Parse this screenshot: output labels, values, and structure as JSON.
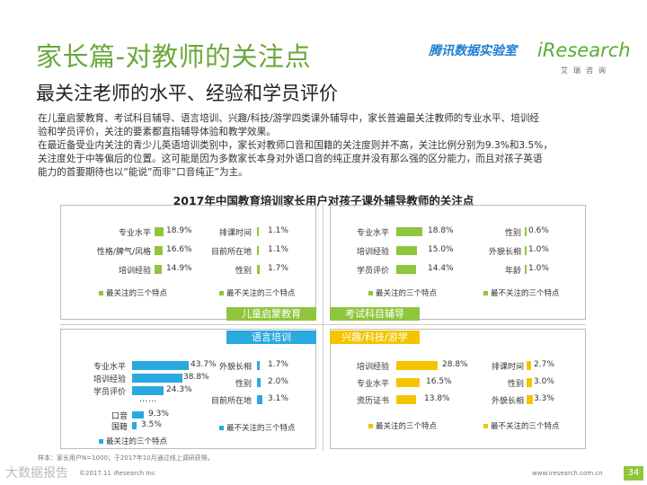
{
  "header": {
    "title": "家长篇-对教师的关注点",
    "subtitle": "最关注老师的水平、经验和学员评价"
  },
  "logo": {
    "cn": "腾讯数据实验室",
    "iresearch": "iResearch",
    "iresearch_sub": "艾瑞咨询"
  },
  "paragraphs": [
    "在儿童启蒙教育、考试科目辅导、语言培训、兴趣/科技/游学四类课外辅导中，家长普遍最关注教师的专业水平、培训经",
    "验和学员评价，关注的要素都直指辅导体验和教学效果。",
    "在最近备受业内关注的青少儿英语培训类别中，家长对教师口音和国籍的关注度则并不高，关注比例分别为9.3%和3.5%，",
    "关注度处于中等偏后的位置。这可能是因为多数家长本身对外语口音的纯正度并没有那么强的区分能力，而且对孩子英语",
    "能力的首要期待也以“能说”而非“口音纯正”为主。"
  ],
  "chart_data": {
    "type": "bar",
    "title": "2017年中国教育培训家长用户对孩子课外辅导教师的关注点",
    "legend": {
      "most": "最关注的三个特点",
      "least": "最不关注的三个特点"
    },
    "ellipsis": "……",
    "colors": {
      "green": "#8fc63d",
      "blue": "#29a9e0",
      "yellow": "#f5c400"
    },
    "panels": [
      {
        "name": "儿童启蒙教育",
        "most": [
          {
            "label": "专业水平",
            "value": 18.9,
            "text": "18.9%"
          },
          {
            "label": "性格/脾气/风格",
            "value": 16.6,
            "text": "16.6%"
          },
          {
            "label": "培训经验",
            "value": 14.9,
            "text": "14.9%"
          }
        ],
        "least": [
          {
            "label": "排课时间",
            "value": 1.1,
            "text": "1.1%"
          },
          {
            "label": "目前所在地",
            "value": 1.1,
            "text": "1.1%"
          },
          {
            "label": "性别",
            "value": 1.7,
            "text": "1.7%"
          }
        ]
      },
      {
        "name": "考试科目辅导",
        "most": [
          {
            "label": "专业水平",
            "value": 18.8,
            "text": "18.8%"
          },
          {
            "label": "培训经验",
            "value": 15.0,
            "text": "15.0%"
          },
          {
            "label": "学员评价",
            "value": 14.4,
            "text": "14.4%"
          }
        ],
        "least": [
          {
            "label": "性别",
            "value": 0.6,
            "text": "0.6%"
          },
          {
            "label": "外貌长相",
            "value": 1.0,
            "text": "1.0%"
          },
          {
            "label": "年龄",
            "value": 1.0,
            "text": "1.0%"
          }
        ]
      },
      {
        "name": "语言培训",
        "most": [
          {
            "label": "专业水平",
            "value": 43.7,
            "text": "43.7%"
          },
          {
            "label": "培训经验",
            "value": 38.8,
            "text": "38.8%"
          },
          {
            "label": "学员评价",
            "value": 24.3,
            "text": "24.3%"
          }
        ],
        "extra": [
          {
            "label": "口音",
            "value": 9.3,
            "text": "9.3%"
          },
          {
            "label": "国籍",
            "value": 3.5,
            "text": "3.5%"
          }
        ],
        "least": [
          {
            "label": "外貌长相",
            "value": 1.7,
            "text": "1.7%"
          },
          {
            "label": "性别",
            "value": 2.0,
            "text": "2.0%"
          },
          {
            "label": "目前所在地",
            "value": 3.1,
            "text": "3.1%"
          }
        ]
      },
      {
        "name": "兴趣/科技/游学",
        "most": [
          {
            "label": "培训经验",
            "value": 28.8,
            "text": "28.8%"
          },
          {
            "label": "专业水平",
            "value": 16.5,
            "text": "16.5%"
          },
          {
            "label": "资历证书",
            "value": 13.8,
            "text": "13.8%"
          }
        ],
        "least": [
          {
            "label": "排课时间",
            "value": 2.7,
            "text": "2.7%"
          },
          {
            "label": "性别",
            "value": 3.0,
            "text": "3.0%"
          },
          {
            "label": "外貌长相",
            "value": 3.3,
            "text": "3.3%"
          }
        ]
      }
    ]
  },
  "footer": {
    "note": "样本：家长用户N=1000；于2017年10月通过线上调研获得。",
    "copyright": "©2017.11 iResearch Inc",
    "website": "www.iresearch.com.cn",
    "watermark": "大数据报告",
    "page": "34"
  }
}
